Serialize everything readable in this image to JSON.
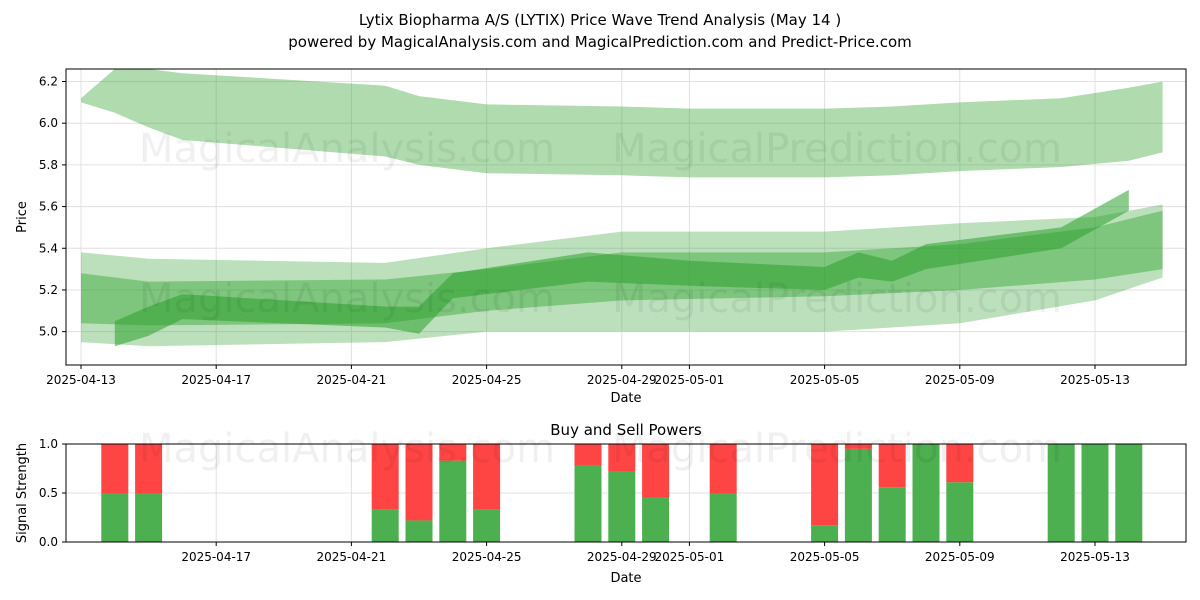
{
  "title_line1": "Lytix Biopharma A/S (LYTIX) Price Wave Trend Analysis (May 14 )",
  "title_line2": "powered by MagicalAnalysis.com and MagicalPrediction.com and Predict-Price.com",
  "watermarks": [
    "MagicalAnalysis.com",
    "MagicalPrediction.com"
  ],
  "colors": {
    "band": "#2ca02c",
    "buy": "#4caf50",
    "sell": "#ff4444",
    "grid": "#e0e0e0"
  },
  "chart_data": [
    {
      "type": "area",
      "title": "",
      "xlabel": "Date",
      "ylabel": "Price",
      "x_ticks": [
        "2025-04-13",
        "2025-04-17",
        "2025-04-21",
        "2025-04-25",
        "2025-04-29",
        "2025-05-01",
        "2025-05-05",
        "2025-05-09",
        "2025-05-13"
      ],
      "y_ticks": [
        "5.0",
        "5.2",
        "5.4",
        "5.6",
        "5.8",
        "6.0",
        "6.2"
      ],
      "ylim": [
        4.84,
        6.26
      ],
      "grid": true,
      "upper_band": {
        "x": [
          "2025-04-13",
          "2025-04-14",
          "2025-04-15",
          "2025-04-16",
          "2025-04-22",
          "2025-04-23",
          "2025-04-25",
          "2025-04-29",
          "2025-05-01",
          "2025-05-05",
          "2025-05-07",
          "2025-05-09",
          "2025-05-12",
          "2025-05-14",
          "2025-05-15"
        ],
        "top": [
          6.12,
          6.26,
          6.26,
          6.24,
          6.18,
          6.13,
          6.09,
          6.08,
          6.07,
          6.07,
          6.08,
          6.1,
          6.12,
          6.17,
          6.2
        ],
        "bottom": [
          6.1,
          6.05,
          5.98,
          5.92,
          5.84,
          5.8,
          5.76,
          5.75,
          5.74,
          5.74,
          5.75,
          5.77,
          5.79,
          5.82,
          5.86
        ]
      },
      "lower_bands": [
        {
          "x": [
            "2025-04-13",
            "2025-04-15",
            "2025-04-22",
            "2025-04-25",
            "2025-04-29",
            "2025-05-05",
            "2025-05-09",
            "2025-05-13",
            "2025-05-15"
          ],
          "top": [
            5.38,
            5.35,
            5.33,
            5.4,
            5.48,
            5.48,
            5.52,
            5.55,
            5.61
          ],
          "bottom": [
            4.95,
            4.93,
            4.95,
            5.0,
            5.0,
            5.0,
            5.04,
            5.15,
            5.26
          ]
        },
        {
          "x": [
            "2025-04-13",
            "2025-04-15",
            "2025-04-22",
            "2025-04-25",
            "2025-04-29",
            "2025-05-05",
            "2025-05-09",
            "2025-05-13",
            "2025-05-15"
          ],
          "top": [
            5.28,
            5.24,
            5.25,
            5.3,
            5.38,
            5.38,
            5.42,
            5.5,
            5.58
          ],
          "bottom": [
            5.04,
            5.03,
            5.04,
            5.1,
            5.15,
            5.17,
            5.2,
            5.25,
            5.3
          ]
        },
        {
          "x": [
            "2025-04-14",
            "2025-04-15",
            "2025-04-16",
            "2025-04-22",
            "2025-04-23",
            "2025-04-24",
            "2025-04-28",
            "2025-05-01",
            "2025-05-05",
            "2025-05-06",
            "2025-05-07",
            "2025-05-08",
            "2025-05-12",
            "2025-05-14"
          ],
          "top": [
            5.05,
            5.12,
            5.18,
            5.12,
            5.12,
            5.28,
            5.38,
            5.34,
            5.31,
            5.38,
            5.34,
            5.42,
            5.5,
            5.68
          ],
          "bottom": [
            4.93,
            4.98,
            5.06,
            5.02,
            4.99,
            5.16,
            5.24,
            5.22,
            5.2,
            5.26,
            5.24,
            5.3,
            5.4,
            5.58
          ]
        }
      ]
    },
    {
      "type": "bar",
      "title": "Buy and Sell Powers",
      "xlabel": "Date",
      "ylabel": "Signal Strength",
      "x_ticks": [
        "2025-04-17",
        "2025-04-21",
        "2025-04-25",
        "2025-04-29",
        "2025-05-01",
        "2025-05-05",
        "2025-05-09",
        "2025-05-13"
      ],
      "y_ticks": [
        "0.0",
        "0.5",
        "1.0"
      ],
      "ylim": [
        0,
        1
      ],
      "grid": true,
      "categories": [
        "2025-04-14",
        "2025-04-15",
        "2025-04-22",
        "2025-04-23",
        "2025-04-24",
        "2025-04-25",
        "2025-04-28",
        "2025-04-29",
        "2025-04-30",
        "2025-05-02",
        "2025-05-05",
        "2025-05-06",
        "2025-05-07",
        "2025-05-08",
        "2025-05-09",
        "2025-05-12",
        "2025-05-13",
        "2025-05-14"
      ],
      "series": [
        {
          "values": [
            0.5,
            0.5,
            0.33,
            0.22,
            0.83,
            0.33,
            0.78,
            0.72,
            0.45,
            0.5,
            0.17,
            0.95,
            0.56,
            1.0,
            0.61,
            1.0,
            1.0,
            1.0
          ]
        },
        {
          "values": [
            0.5,
            0.5,
            0.67,
            0.78,
            0.17,
            0.67,
            0.22,
            0.28,
            0.55,
            0.5,
            0.83,
            0.05,
            0.44,
            0.0,
            0.39,
            0.0,
            0.0,
            0.0
          ]
        }
      ]
    }
  ]
}
